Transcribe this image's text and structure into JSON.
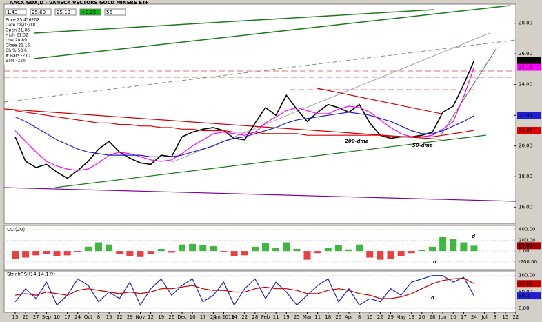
{
  "header": {
    "toolbar": [
      "1.43",
      "25.60",
      "25.19",
      "+0.25",
      "56"
    ],
    "info": [
      "Price 25.456202",
      "Date 08/03/18",
      "Open 21.06",
      "High 21.32",
      "Low 20.89",
      "Close 21.15",
      "Ch % 50.6",
      "# Bars -210",
      "Bars -226"
    ]
  },
  "chart_data": [
    {
      "type": "line",
      "title": "AACX GDX,D - VANECK VECTORS GOLD MINERS ETF",
      "categories": [
        "13",
        "20",
        "27",
        "Sep",
        "10",
        "17",
        "24",
        "Oct",
        "8",
        "15",
        "22",
        "29",
        "Nov",
        "12",
        "19",
        "26",
        "Dec",
        "10",
        "17",
        "24",
        "Jan 2019",
        "14",
        "22",
        "28",
        "Feb",
        "11",
        "19",
        "25",
        "Mar",
        "11",
        "18",
        "25",
        "Apr",
        "8",
        "15",
        "22",
        "29",
        "May",
        "13",
        "20",
        "28",
        "Jun",
        "10",
        "17",
        "24",
        "Jul",
        "8",
        "15",
        "22"
      ],
      "series": [
        {
          "color": "#000000",
          "values": [
            20.6,
            19.0,
            18.6,
            18.8,
            18.3,
            17.9,
            18.4,
            19.0,
            19.8,
            20.3,
            19.6,
            19.2,
            18.9,
            18.8,
            19.4,
            19.3,
            20.6,
            20.9,
            21.1,
            21.2,
            21.0,
            20.5,
            20.4,
            21.5,
            22.5,
            22.0,
            23.3,
            22.4,
            21.6,
            22.2,
            22.7,
            22.5,
            22.2,
            22.7,
            21.5,
            20.7,
            20.5,
            20.6,
            20.6,
            20.7,
            20.9,
            22.2,
            22.6,
            24.0,
            25.56,
            null,
            null,
            null,
            null
          ]
        },
        {
          "color": "#ff00ff",
          "values": [
            21.0,
            20.3,
            19.6,
            19.0,
            18.7,
            18.5,
            18.4,
            18.5,
            18.9,
            19.4,
            19.6,
            19.5,
            19.3,
            19.1,
            19.0,
            19.1,
            19.5,
            20.0,
            20.4,
            20.8,
            20.9,
            20.8,
            20.7,
            20.9,
            21.5,
            21.9,
            22.3,
            22.5,
            22.3,
            22.1,
            22.1,
            22.4,
            22.6,
            22.5,
            22.2,
            21.7,
            21.2,
            20.8,
            20.6,
            20.6,
            20.7,
            21.1,
            21.6,
            23.2,
            25.13,
            null,
            null,
            null,
            null
          ]
        },
        {
          "color": "#1f1fd0",
          "values": [
            21.9,
            21.6,
            21.2,
            20.8,
            20.4,
            20.1,
            19.8,
            19.6,
            19.5,
            19.4,
            19.4,
            19.4,
            19.4,
            19.3,
            19.3,
            19.3,
            19.4,
            19.6,
            19.8,
            20.0,
            20.3,
            20.5,
            20.6,
            20.8,
            21.0,
            21.2,
            21.5,
            21.7,
            21.8,
            21.9,
            22.0,
            22.1,
            22.2,
            22.1,
            22.0,
            21.8,
            21.6,
            21.3,
            21.0,
            20.8,
            20.8,
            21.0,
            21.3,
            21.6,
            21.97,
            null,
            null,
            null,
            null
          ]
        },
        {
          "color": "#e00000",
          "values": [
            22.3,
            22.2,
            22.1,
            22.0,
            21.9,
            21.8,
            21.7,
            21.6,
            21.5,
            21.5,
            21.4,
            21.4,
            21.3,
            21.3,
            21.2,
            21.2,
            21.1,
            21.1,
            21.0,
            21.0,
            21.0,
            20.9,
            20.9,
            20.9,
            20.8,
            20.8,
            20.8,
            20.8,
            20.7,
            20.7,
            20.7,
            20.7,
            20.7,
            20.7,
            20.7,
            20.7,
            20.6,
            20.6,
            20.6,
            20.6,
            20.6,
            20.7,
            20.8,
            20.9,
            21.02,
            null,
            null,
            null,
            null
          ]
        }
      ],
      "annotations": [
        "50-dma",
        "200-dma"
      ],
      "ylim": [
        15,
        29.2
      ],
      "yticks": [
        {
          "value": 16,
          "label": "16.00"
        },
        {
          "value": 18,
          "label": "18.00"
        },
        {
          "value": 20,
          "label": "20.00"
        },
        {
          "value": 22,
          "label": "22.00"
        },
        {
          "value": 24,
          "label": "24.00"
        },
        {
          "value": 26,
          "label": "26.00"
        },
        {
          "value": 28,
          "label": "28.00"
        }
      ]
    },
    {
      "type": "bar",
      "title": "CCI(20)",
      "pos_color": "#00a000",
      "neg_color": "#e00000",
      "values": [
        -150,
        -120,
        -80,
        -60,
        -100,
        -80,
        -20,
        80,
        160,
        120,
        -60,
        -90,
        -110,
        -60,
        40,
        -30,
        120,
        130,
        110,
        90,
        -20,
        -100,
        -80,
        80,
        150,
        60,
        160,
        40,
        -160,
        -40,
        60,
        110,
        30,
        120,
        -120,
        -160,
        -150,
        -90,
        -40,
        20,
        80,
        260,
        230,
        160,
        99.02,
        null,
        null,
        null,
        null
      ],
      "last_color": "#a00000",
      "annotations": [
        "d",
        "d"
      ],
      "ylim": [
        -330,
        460
      ],
      "yticks": [
        {
          "value": -200,
          "label": "-200.00"
        },
        {
          "value": 0,
          "label": "0.00"
        },
        {
          "value": 200,
          "label": "200.00"
        },
        {
          "value": 400,
          "label": "400.00"
        }
      ]
    },
    {
      "type": "line",
      "title": "StochRSI(14,14,1,9)",
      "series": [
        {
          "color": "#1f1fd0",
          "values": [
            20,
            60,
            30,
            80,
            10,
            40,
            90,
            70,
            20,
            50,
            30,
            80,
            10,
            60,
            90,
            40,
            70,
            90,
            20,
            40,
            80,
            10,
            60,
            90,
            30,
            80,
            50,
            10,
            40,
            70,
            90,
            20,
            60,
            10,
            30,
            20,
            60,
            40,
            80,
            90,
            100,
            100,
            80,
            95,
            38.2,
            null,
            null,
            null,
            null
          ]
        },
        {
          "color": "#c00000",
          "values": [
            40,
            45,
            40,
            50,
            45,
            40,
            55,
            60,
            55,
            50,
            45,
            50,
            45,
            50,
            60,
            60,
            65,
            70,
            60,
            55,
            55,
            50,
            50,
            60,
            65,
            60,
            60,
            55,
            45,
            45,
            55,
            60,
            55,
            45,
            40,
            30,
            30,
            35,
            45,
            60,
            75,
            85,
            90,
            92,
            75.69,
            null,
            null,
            null,
            null
          ]
        }
      ],
      "annotations": [
        "d"
      ],
      "ylim": [
        -10,
        112
      ],
      "yticks": [
        {
          "value": 0,
          "label": "0.00"
        },
        {
          "value": 50,
          "label": "50.00"
        },
        {
          "value": 100,
          "label": "100.00"
        }
      ]
    }
  ]
}
